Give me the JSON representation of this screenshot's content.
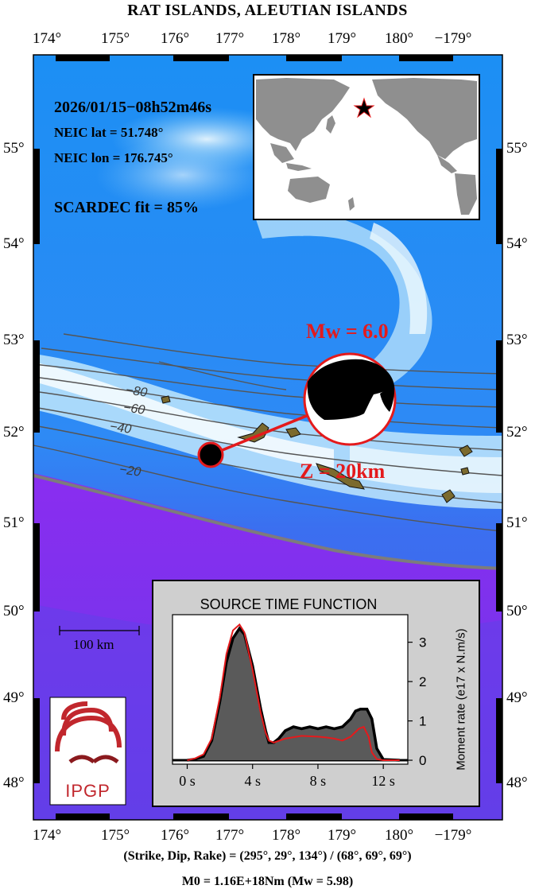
{
  "title": "RAT ISLANDS, ALEUTIAN ISLANDS",
  "lon_labels": [
    "174°",
    "175°",
    "176°",
    "177°",
    "178°",
    "179°",
    "180°",
    "−179°"
  ],
  "lat_labels": [
    "55°",
    "54°",
    "53°",
    "52°",
    "51°",
    "50°",
    "49°",
    "48°"
  ],
  "event": {
    "datetime": "2026/01/15−08h52m46s",
    "lat_text": "NEIC lat  = 51.748°",
    "lon_text": "NEIC lon = 176.745°",
    "fit_text": "SCARDEC fit = 85%"
  },
  "magnitude_label": "Mw = 6.0",
  "depth_label": "Z =  20km",
  "contour_labels": [
    "−80",
    "−60",
    "−40",
    "−20"
  ],
  "scale_bar_label": "100 km",
  "logo_text": "IPGP",
  "stf": {
    "title": "SOURCE TIME FUNCTION",
    "ylabel": "Moment rate (e17 x N.m/s)",
    "xticks": [
      "0 s",
      "4 s",
      "8 s",
      "12 s"
    ],
    "yticks": [
      "0",
      "1",
      "2",
      "3"
    ]
  },
  "footer": {
    "line1": "(Strike, Dip, Rake) = (295°, 29°, 134°) / (68°, 69°, 69°)",
    "line2": "M0 = 1.16E+18Nm  (Mw = 5.98)"
  },
  "colors": {
    "deep_ocean": "#7a1fe8",
    "mid_ocean": "#2a6cf0",
    "ocean": "#1f9bf7",
    "shallow": "#d8f1fb",
    "land": "#7b6a2e",
    "accent_red": "#e41a1c",
    "inset_land": "#8f8f8f",
    "stf_fill": "#5a5a5a",
    "panel_bg": "#cfcfcf"
  },
  "chart_data": {
    "type": "area",
    "title": "SOURCE TIME FUNCTION",
    "xlabel": "",
    "ylabel": "Moment rate (e17 x N.m/s)",
    "xlim": [
      -0.9,
      13.5
    ],
    "ylim": [
      -0.1,
      3.7
    ],
    "series": [
      {
        "x": [
          0,
          0.5,
          1,
          1.5,
          2,
          2.4,
          2.8,
          3.2,
          3.5,
          4,
          4.5,
          4.8,
          5,
          5.3,
          5.6,
          6,
          6.5,
          7,
          7.5,
          8,
          8.5,
          9,
          9.5,
          10,
          10.3,
          10.6,
          11,
          11.3,
          11.6,
          12,
          13
        ],
        "values": [
          0,
          0.03,
          0.1,
          0.5,
          1.5,
          2.5,
          3.1,
          3.35,
          3.2,
          2.4,
          1.3,
          0.75,
          0.45,
          0.45,
          0.55,
          0.75,
          0.85,
          0.8,
          0.85,
          0.8,
          0.85,
          0.8,
          0.85,
          1.05,
          1.25,
          1.3,
          1.3,
          1.05,
          0.3,
          0.02,
          0
        ]
      },
      {
        "x": [
          0,
          0.5,
          1,
          1.5,
          2,
          2.4,
          2.8,
          3.2,
          3.5,
          4,
          4.5,
          4.8,
          5,
          5.3,
          6,
          7,
          8,
          8.5,
          9,
          9.5,
          10,
          10.5,
          10.8,
          11.1,
          11.3,
          11.6,
          12,
          13
        ],
        "values": [
          0,
          0.05,
          0.15,
          0.55,
          1.6,
          2.7,
          3.3,
          3.45,
          3.25,
          2.3,
          1.2,
          0.7,
          0.5,
          0.45,
          0.55,
          0.62,
          0.6,
          0.58,
          0.55,
          0.5,
          0.6,
          0.8,
          0.85,
          0.6,
          0.2,
          0.03,
          0,
          0
        ]
      }
    ]
  }
}
